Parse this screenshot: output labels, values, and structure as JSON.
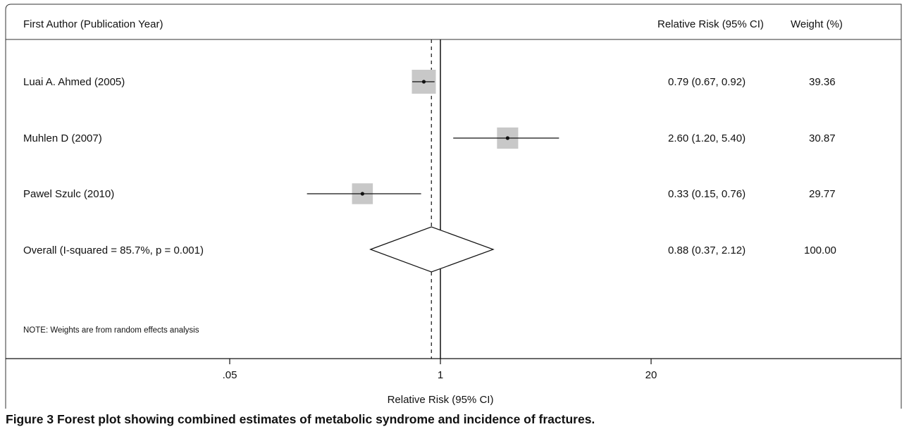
{
  "chart_data": {
    "type": "forest",
    "scale": "log",
    "header": {
      "study": "First Author (Publication Year)",
      "estimate": "Relative Risk (95% CI)",
      "weight": "Weight (%)"
    },
    "studies": [
      {
        "label": "Luai A. Ahmed (2005)",
        "estimate": 0.79,
        "ci": [
          0.67,
          0.92
        ],
        "ci_text": "0.79 (0.67, 0.92)",
        "weight": 39.36,
        "weight_text": "39.36"
      },
      {
        "label": "Muhlen D (2007)",
        "estimate": 2.6,
        "ci": [
          1.2,
          5.4
        ],
        "ci_text": "2.60 (1.20, 5.40)",
        "weight": 30.87,
        "weight_text": "30.87"
      },
      {
        "label": "Pawel Szulc (2010)",
        "estimate": 0.33,
        "ci": [
          0.15,
          0.76
        ],
        "ci_text": "0.33 (0.15, 0.76)",
        "weight": 29.77,
        "weight_text": "29.77"
      }
    ],
    "overall": {
      "label": "Overall  (I-squared = 85.7%, p = 0.001)",
      "estimate": 0.88,
      "ci": [
        0.37,
        2.12
      ],
      "ci_text": "0.88 (0.37, 2.12)",
      "weight_text": "100.00"
    },
    "null_value": 1,
    "note": "NOTE: Weights are from random effects analysis",
    "x_ticks": [
      0.05,
      1,
      20
    ],
    "x_tick_labels": [
      ".05",
      "1",
      "20"
    ],
    "xlabel": "Relative Risk (95% CI)",
    "xlim": [
      0.0112,
      49.5
    ]
  },
  "caption": {
    "label": "Figure 3",
    "text": "Forest plot showing combined estimates of metabolic syndrome and incidence of fractures."
  }
}
